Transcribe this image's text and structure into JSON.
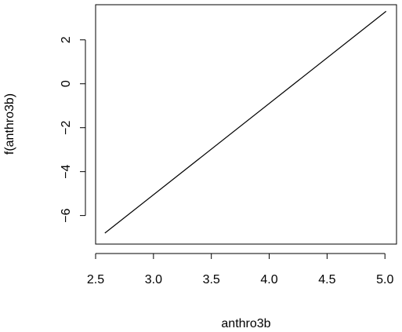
{
  "chart_data": {
    "type": "line",
    "title": "",
    "xlabel": "anthro3b",
    "ylabel": "f(anthro3b)",
    "xlim": [
      2.5,
      5.1
    ],
    "ylim": [
      -7.3,
      3.6
    ],
    "xticks": [
      2.5,
      3.0,
      3.5,
      4.0,
      4.5,
      5.0
    ],
    "xtick_labels": [
      "2.5",
      "3.0",
      "3.5",
      "4.0",
      "4.5",
      "5.0"
    ],
    "yticks": [
      -6,
      -4,
      -2,
      0,
      2
    ],
    "ytick_labels": [
      "−6",
      "−4",
      "−2",
      "0",
      "2"
    ],
    "grid": false,
    "series": [
      {
        "x": [
          2.58,
          5.01
        ],
        "y": [
          -6.8,
          3.3
        ]
      }
    ]
  }
}
